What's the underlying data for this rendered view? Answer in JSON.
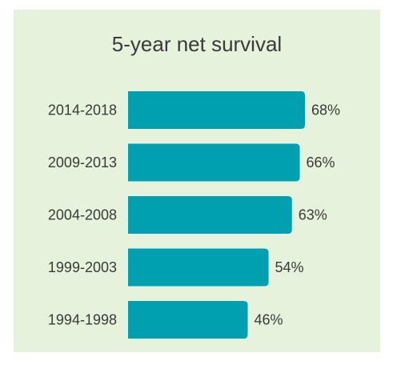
{
  "chart_data": {
    "type": "bar",
    "orientation": "horizontal",
    "title": "5-year net survival",
    "categories": [
      "2014-2018",
      "2009-2013",
      "2004-2008",
      "1999-2003",
      "1994-1998"
    ],
    "values": [
      68,
      66,
      63,
      54,
      46
    ],
    "data_labels": [
      "68%",
      "66%",
      "63%",
      "54%",
      "46%"
    ],
    "xlim": [
      0,
      68
    ],
    "grid": false,
    "legend": "none",
    "bar_color": "#00a0b0",
    "background_color": "#e7f2dc"
  }
}
